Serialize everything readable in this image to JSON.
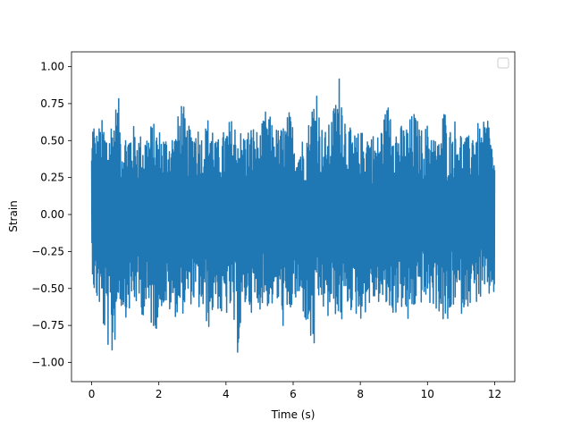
{
  "chart_data": {
    "type": "line",
    "title": "",
    "xlabel": "Time (s)",
    "ylabel": "Strain",
    "xlim": [
      -0.6,
      12.6
    ],
    "ylim": [
      -1.13,
      1.1
    ],
    "x_ticks": [
      0,
      2,
      4,
      6,
      8,
      10,
      12
    ],
    "x_tick_labels": [
      "0",
      "2",
      "4",
      "6",
      "8",
      "10",
      "12"
    ],
    "y_ticks": [
      -1.0,
      -0.75,
      -0.5,
      -0.25,
      0.0,
      0.25,
      0.5,
      0.75,
      1.0
    ],
    "y_tick_labels": [
      "−1.00",
      "−0.75",
      "−0.50",
      "−0.25",
      "0.00",
      "0.25",
      "0.50",
      "0.75",
      "1.00"
    ],
    "grid": false,
    "legend": {
      "placement": "upper-right",
      "entries": []
    },
    "series": [
      {
        "color": "#1f77b4",
        "x_range": [
          0,
          12
        ],
        "band_upper": [
          [
            0.0,
            0.47
          ],
          [
            0.05,
            0.81
          ],
          [
            0.1,
            0.55
          ],
          [
            0.3,
            0.65
          ],
          [
            0.5,
            0.58
          ],
          [
            0.6,
            0.68
          ],
          [
            0.8,
            0.8
          ],
          [
            0.9,
            0.55
          ],
          [
            1.2,
            0.62
          ],
          [
            1.5,
            0.54
          ],
          [
            1.8,
            0.63
          ],
          [
            2.2,
            0.55
          ],
          [
            2.5,
            0.58
          ],
          [
            2.7,
            0.84
          ],
          [
            2.8,
            0.6
          ],
          [
            3.0,
            0.6
          ],
          [
            3.1,
            0.66
          ],
          [
            3.3,
            0.55
          ],
          [
            3.55,
            0.73
          ],
          [
            3.7,
            0.5
          ],
          [
            3.9,
            0.55
          ],
          [
            4.0,
            0.62
          ],
          [
            4.2,
            0.66
          ],
          [
            4.5,
            0.56
          ],
          [
            4.8,
            0.62
          ],
          [
            5.0,
            0.55
          ],
          [
            5.2,
            0.73
          ],
          [
            5.4,
            0.62
          ],
          [
            5.6,
            0.58
          ],
          [
            5.9,
            0.71
          ],
          [
            6.1,
            0.52
          ],
          [
            6.3,
            0.53
          ],
          [
            6.5,
            0.67
          ],
          [
            6.7,
            0.98
          ],
          [
            6.8,
            0.62
          ],
          [
            7.0,
            0.56
          ],
          [
            7.2,
            0.73
          ],
          [
            7.4,
            1.0
          ],
          [
            7.6,
            0.62
          ],
          [
            7.8,
            0.55
          ],
          [
            8.0,
            0.56
          ],
          [
            8.2,
            0.6
          ],
          [
            8.5,
            0.53
          ],
          [
            8.9,
            0.82
          ],
          [
            9.1,
            0.6
          ],
          [
            9.4,
            0.62
          ],
          [
            9.6,
            0.71
          ],
          [
            9.8,
            0.58
          ],
          [
            10.1,
            0.64
          ],
          [
            10.3,
            0.48
          ],
          [
            10.5,
            0.77
          ],
          [
            10.6,
            0.55
          ],
          [
            10.8,
            0.66
          ],
          [
            11.0,
            0.58
          ],
          [
            11.2,
            0.52
          ],
          [
            11.4,
            0.66
          ],
          [
            11.6,
            0.58
          ],
          [
            11.8,
            0.7
          ],
          [
            11.9,
            0.55
          ],
          [
            12.0,
            0.35
          ]
        ],
        "band_lower": [
          [
            0.0,
            -0.32
          ],
          [
            0.05,
            -0.48
          ],
          [
            0.1,
            -0.62
          ],
          [
            0.2,
            -0.6
          ],
          [
            0.35,
            -0.8
          ],
          [
            0.5,
            -0.92
          ],
          [
            0.6,
            -1.03
          ],
          [
            0.7,
            -0.86
          ],
          [
            0.8,
            -0.6
          ],
          [
            1.0,
            -0.7
          ],
          [
            1.3,
            -0.62
          ],
          [
            1.5,
            -0.68
          ],
          [
            1.9,
            -0.8
          ],
          [
            2.1,
            -0.62
          ],
          [
            2.4,
            -0.7
          ],
          [
            2.7,
            -0.68
          ],
          [
            3.0,
            -0.6
          ],
          [
            3.2,
            -0.66
          ],
          [
            3.5,
            -0.78
          ],
          [
            3.7,
            -0.6
          ],
          [
            3.9,
            -0.76
          ],
          [
            4.1,
            -0.65
          ],
          [
            4.35,
            -0.95
          ],
          [
            4.6,
            -0.62
          ],
          [
            4.9,
            -0.7
          ],
          [
            5.1,
            -0.6
          ],
          [
            5.3,
            -0.65
          ],
          [
            5.5,
            -0.6
          ],
          [
            5.8,
            -0.85
          ],
          [
            6.0,
            -0.6
          ],
          [
            6.3,
            -0.68
          ],
          [
            6.6,
            -0.99
          ],
          [
            6.8,
            -0.58
          ],
          [
            7.0,
            -0.75
          ],
          [
            7.2,
            -0.65
          ],
          [
            7.4,
            -0.78
          ],
          [
            7.6,
            -0.63
          ],
          [
            7.8,
            -0.68
          ],
          [
            8.0,
            -0.72
          ],
          [
            8.3,
            -0.62
          ],
          [
            8.5,
            -0.6
          ],
          [
            8.7,
            -0.64
          ],
          [
            9.0,
            -0.7
          ],
          [
            9.2,
            -0.62
          ],
          [
            9.4,
            -0.78
          ],
          [
            9.7,
            -0.6
          ],
          [
            10.0,
            -0.62
          ],
          [
            10.3,
            -0.65
          ],
          [
            10.6,
            -0.82
          ],
          [
            10.8,
            -0.6
          ],
          [
            11.0,
            -0.68
          ],
          [
            11.2,
            -0.62
          ],
          [
            11.5,
            -0.6
          ],
          [
            11.8,
            -0.58
          ],
          [
            12.0,
            -0.55
          ]
        ]
      }
    ]
  }
}
